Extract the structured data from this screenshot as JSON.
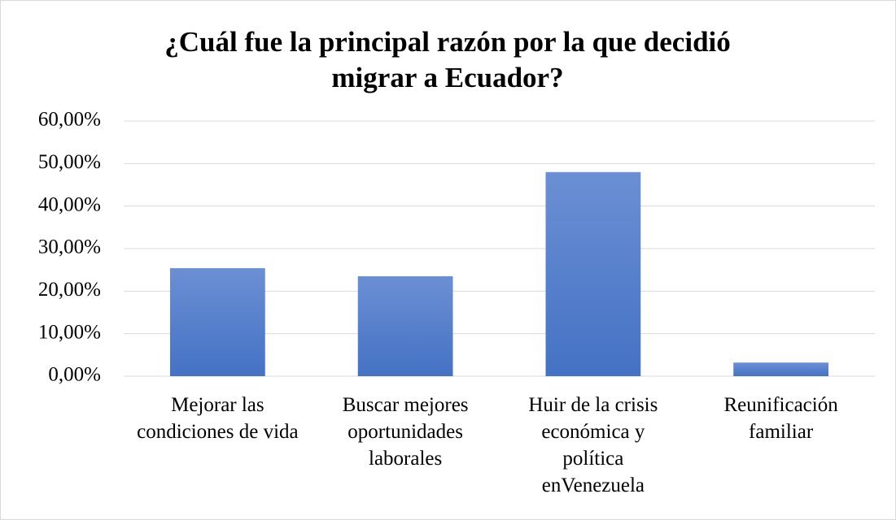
{
  "chart_data": {
    "type": "bar",
    "title": "¿Cuál fue la principal razón por la que decidió migrar a Ecuador?",
    "categories": [
      "Mejorar las condiciones de vida",
      "Buscar mejores oportunidades laborales",
      "Huir de la crisis económica y política enVenezuela",
      "Reunificación familiar"
    ],
    "values": [
      25.4,
      23.5,
      48.0,
      3.2
    ],
    "color": "#4472c4",
    "ylim": [
      0,
      60
    ],
    "yticks": [
      {
        "value": 0,
        "label": "0,00%"
      },
      {
        "value": 10,
        "label": "10,00%"
      },
      {
        "value": 20,
        "label": "20,00%"
      },
      {
        "value": 30,
        "label": "30,00%"
      },
      {
        "value": 40,
        "label": "40,00%"
      },
      {
        "value": 50,
        "label": "50,00%"
      },
      {
        "value": 60,
        "label": "60,00%"
      }
    ],
    "grid": true
  }
}
